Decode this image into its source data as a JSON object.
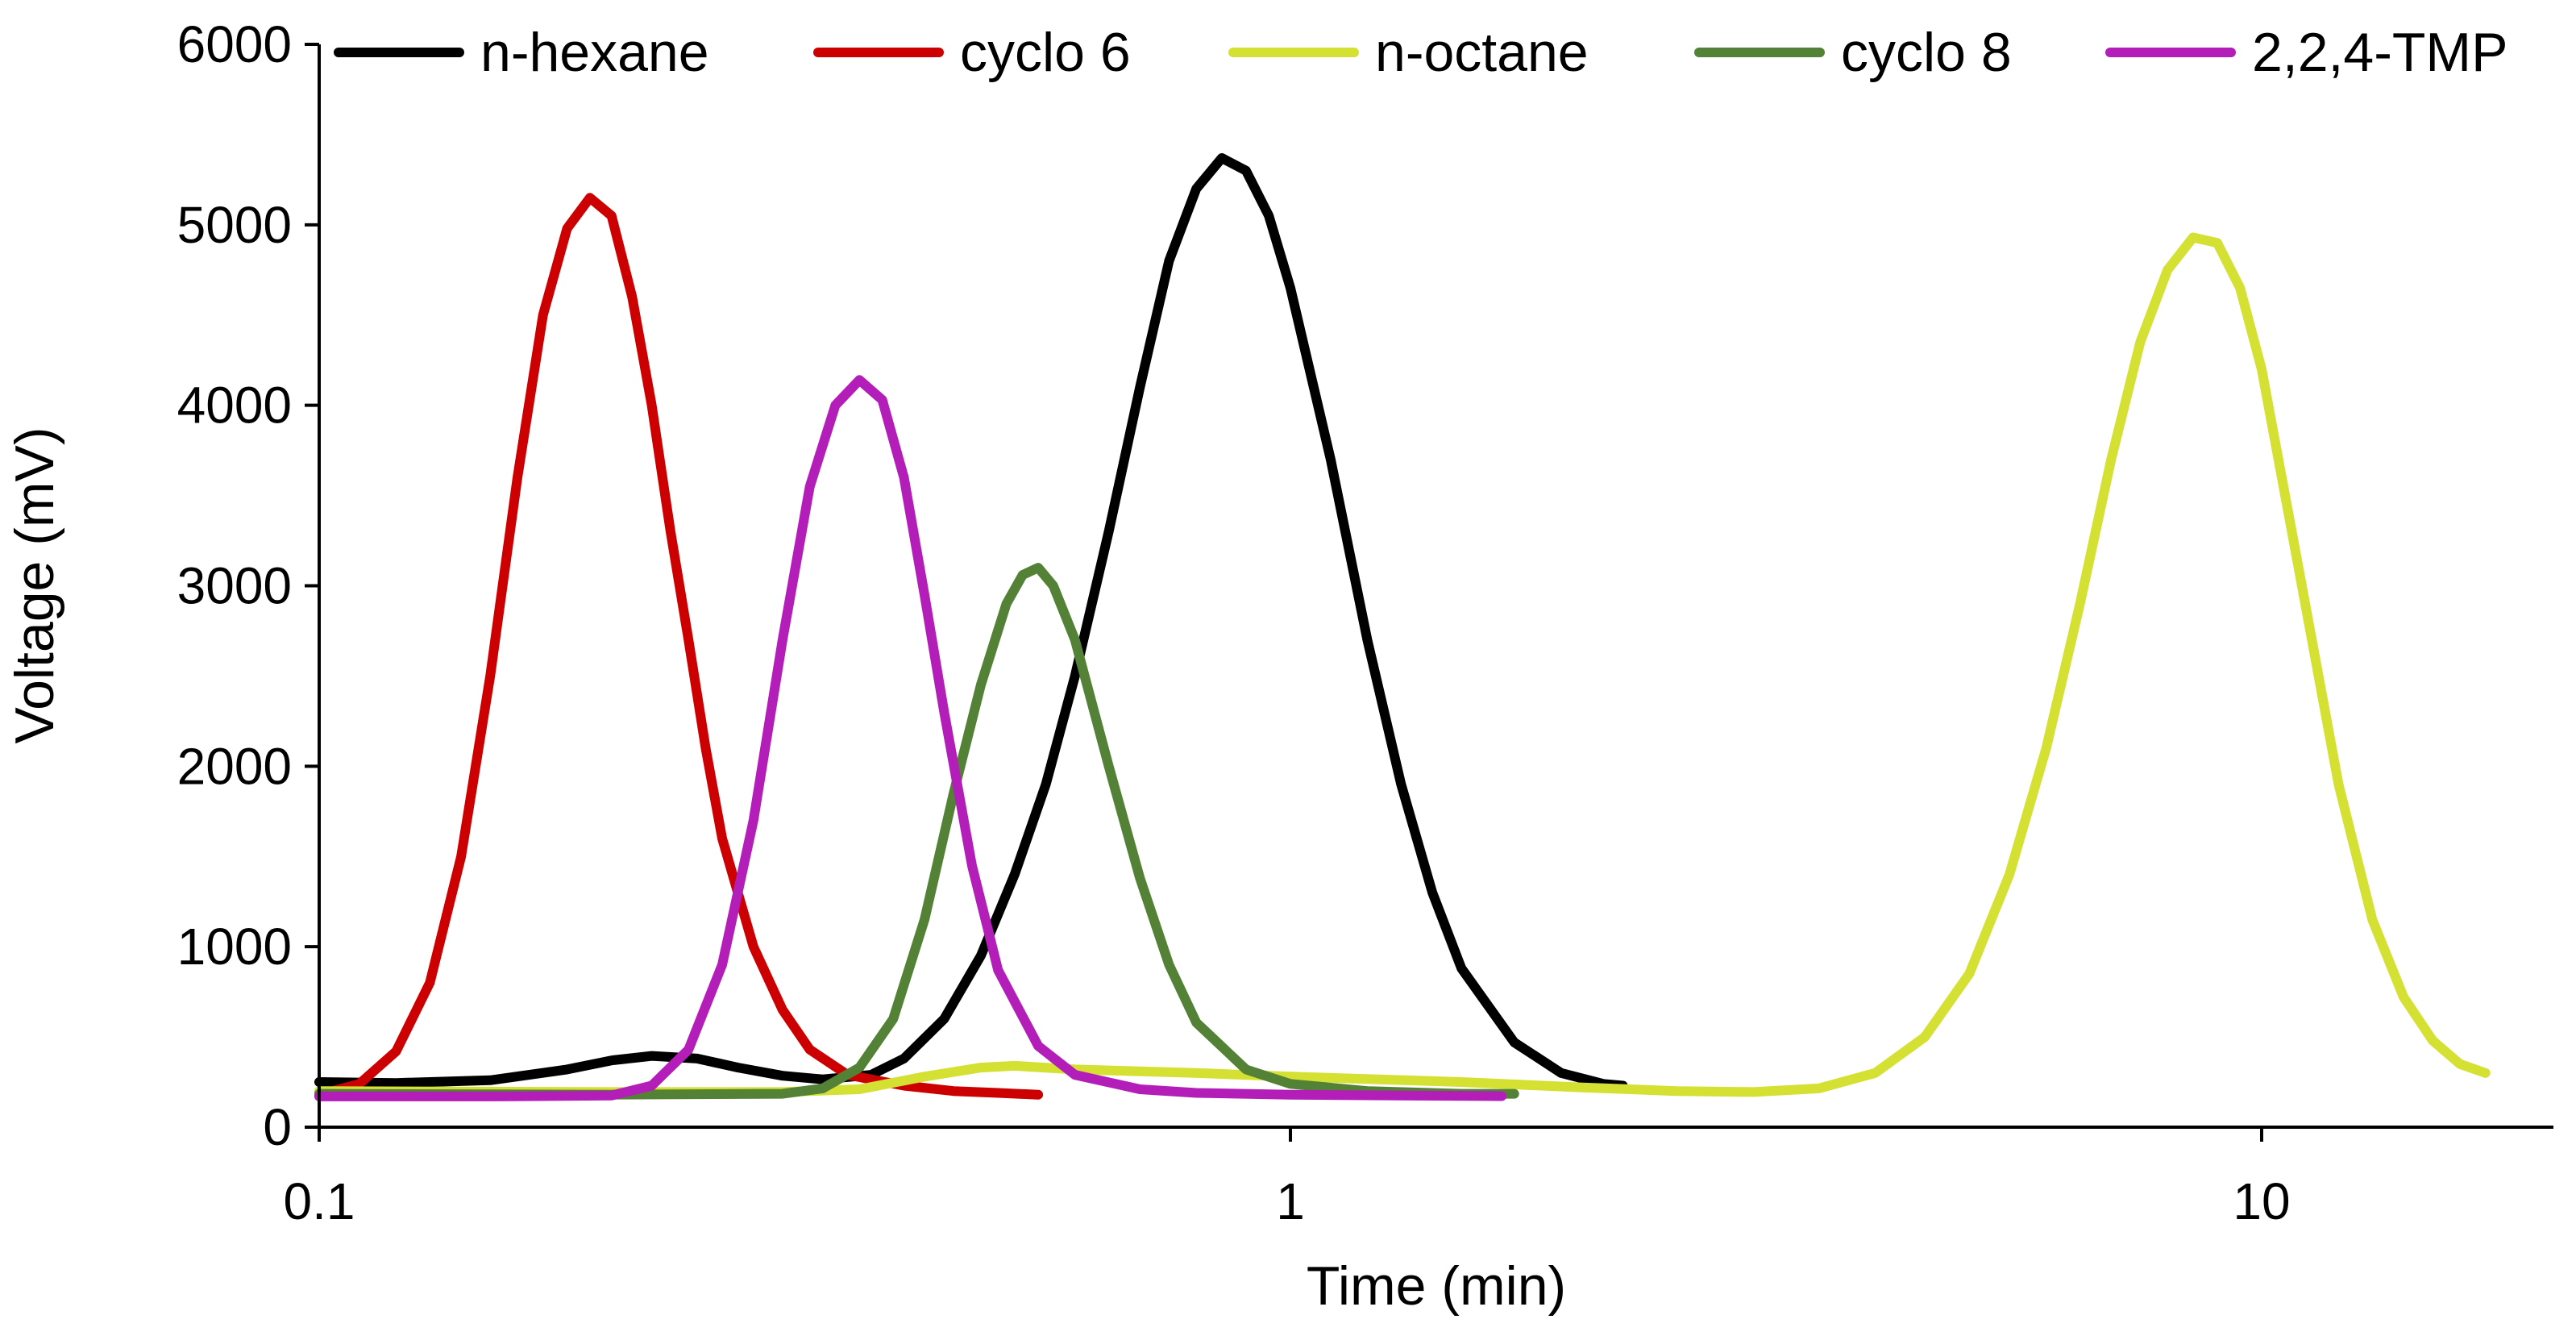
{
  "chart_data": {
    "type": "line",
    "title": "",
    "xlabel": "Time (min)",
    "ylabel": "Voltage (mV)",
    "xscale": "log",
    "xlim": [
      0.1,
      18
    ],
    "ylim": [
      0,
      6000
    ],
    "x_ticks": [
      {
        "value": 0.1,
        "label": "0.1"
      },
      {
        "value": 1,
        "label": "1"
      },
      {
        "value": 10,
        "label": "10"
      }
    ],
    "y_ticks": [
      {
        "value": 0,
        "label": "0"
      },
      {
        "value": 1000,
        "label": "1000"
      },
      {
        "value": 2000,
        "label": "2000"
      },
      {
        "value": 3000,
        "label": "3000"
      },
      {
        "value": 4000,
        "label": "4000"
      },
      {
        "value": 5000,
        "label": "5000"
      },
      {
        "value": 6000,
        "label": "6000"
      }
    ],
    "grid": false,
    "legend_position": "top",
    "series": [
      {
        "name": "n-hexane",
        "color": "#000000",
        "points": [
          [
            0.1,
            250
          ],
          [
            0.12,
            245
          ],
          [
            0.15,
            260
          ],
          [
            0.18,
            320
          ],
          [
            0.2,
            370
          ],
          [
            0.22,
            395
          ],
          [
            0.245,
            380
          ],
          [
            0.27,
            330
          ],
          [
            0.3,
            285
          ],
          [
            0.33,
            265
          ],
          [
            0.37,
            290
          ],
          [
            0.4,
            380
          ],
          [
            0.44,
            600
          ],
          [
            0.48,
            950
          ],
          [
            0.52,
            1400
          ],
          [
            0.56,
            1900
          ],
          [
            0.6,
            2500
          ],
          [
            0.65,
            3300
          ],
          [
            0.7,
            4100
          ],
          [
            0.75,
            4800
          ],
          [
            0.8,
            5200
          ],
          [
            0.85,
            5370
          ],
          [
            0.9,
            5300
          ],
          [
            0.95,
            5050
          ],
          [
            1.0,
            4650
          ],
          [
            1.1,
            3700
          ],
          [
            1.2,
            2700
          ],
          [
            1.3,
            1900
          ],
          [
            1.4,
            1300
          ],
          [
            1.5,
            880
          ],
          [
            1.7,
            470
          ],
          [
            1.9,
            300
          ],
          [
            2.1,
            240
          ],
          [
            2.2,
            230
          ]
        ]
      },
      {
        "name": "cyclo 6",
        "color": "#cc0000",
        "points": [
          [
            0.1,
            180
          ],
          [
            0.11,
            240
          ],
          [
            0.12,
            420
          ],
          [
            0.13,
            800
          ],
          [
            0.14,
            1500
          ],
          [
            0.15,
            2500
          ],
          [
            0.16,
            3600
          ],
          [
            0.17,
            4500
          ],
          [
            0.18,
            4980
          ],
          [
            0.19,
            5150
          ],
          [
            0.2,
            5050
          ],
          [
            0.21,
            4600
          ],
          [
            0.22,
            4000
          ],
          [
            0.23,
            3300
          ],
          [
            0.24,
            2700
          ],
          [
            0.25,
            2100
          ],
          [
            0.26,
            1600
          ],
          [
            0.28,
            1000
          ],
          [
            0.3,
            650
          ],
          [
            0.32,
            430
          ],
          [
            0.35,
            290
          ],
          [
            0.4,
            230
          ],
          [
            0.45,
            200
          ],
          [
            0.5,
            190
          ],
          [
            0.55,
            180
          ]
        ]
      },
      {
        "name": "n-octane",
        "color": "#d4e032",
        "points": [
          [
            0.1,
            200
          ],
          [
            0.2,
            195
          ],
          [
            0.3,
            195
          ],
          [
            0.36,
            210
          ],
          [
            0.42,
            280
          ],
          [
            0.48,
            330
          ],
          [
            0.52,
            340
          ],
          [
            0.6,
            320
          ],
          [
            0.8,
            300
          ],
          [
            1.0,
            280
          ],
          [
            1.5,
            250
          ],
          [
            2.0,
            220
          ],
          [
            2.5,
            200
          ],
          [
            3.0,
            195
          ],
          [
            3.5,
            215
          ],
          [
            4.0,
            300
          ],
          [
            4.5,
            500
          ],
          [
            5.0,
            850
          ],
          [
            5.5,
            1400
          ],
          [
            6.0,
            2100
          ],
          [
            6.5,
            2900
          ],
          [
            7.0,
            3700
          ],
          [
            7.5,
            4350
          ],
          [
            8.0,
            4750
          ],
          [
            8.5,
            4930
          ],
          [
            9.0,
            4900
          ],
          [
            9.5,
            4650
          ],
          [
            10.0,
            4200
          ],
          [
            11.0,
            3000
          ],
          [
            12.0,
            1900
          ],
          [
            13.0,
            1150
          ],
          [
            14.0,
            720
          ],
          [
            15.0,
            480
          ],
          [
            16.0,
            350
          ],
          [
            17.0,
            300
          ]
        ]
      },
      {
        "name": "cyclo 8",
        "color": "#538135",
        "points": [
          [
            0.1,
            185
          ],
          [
            0.2,
            180
          ],
          [
            0.3,
            185
          ],
          [
            0.33,
            215
          ],
          [
            0.36,
            330
          ],
          [
            0.39,
            600
          ],
          [
            0.42,
            1150
          ],
          [
            0.45,
            1850
          ],
          [
            0.48,
            2450
          ],
          [
            0.51,
            2900
          ],
          [
            0.53,
            3060
          ],
          [
            0.55,
            3100
          ],
          [
            0.57,
            3000
          ],
          [
            0.6,
            2700
          ],
          [
            0.65,
            2000
          ],
          [
            0.7,
            1380
          ],
          [
            0.75,
            900
          ],
          [
            0.8,
            580
          ],
          [
            0.9,
            320
          ],
          [
            1.0,
            240
          ],
          [
            1.2,
            200
          ],
          [
            1.5,
            185
          ],
          [
            1.7,
            185
          ]
        ]
      },
      {
        "name": "2,2,4-TMP",
        "color": "#b31eb8",
        "points": [
          [
            0.1,
            170
          ],
          [
            0.15,
            170
          ],
          [
            0.2,
            175
          ],
          [
            0.22,
            230
          ],
          [
            0.24,
            430
          ],
          [
            0.26,
            900
          ],
          [
            0.28,
            1700
          ],
          [
            0.3,
            2700
          ],
          [
            0.32,
            3550
          ],
          [
            0.34,
            4000
          ],
          [
            0.36,
            4140
          ],
          [
            0.38,
            4030
          ],
          [
            0.4,
            3600
          ],
          [
            0.42,
            2950
          ],
          [
            0.44,
            2300
          ],
          [
            0.47,
            1450
          ],
          [
            0.5,
            870
          ],
          [
            0.55,
            450
          ],
          [
            0.6,
            290
          ],
          [
            0.7,
            210
          ],
          [
            0.8,
            190
          ],
          [
            1.0,
            180
          ],
          [
            1.3,
            175
          ],
          [
            1.65,
            172
          ]
        ]
      }
    ]
  }
}
